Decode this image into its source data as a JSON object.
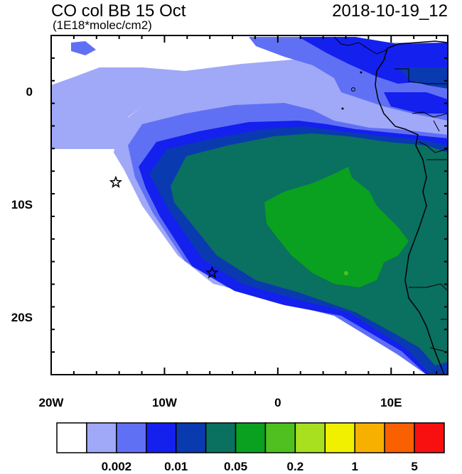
{
  "map": {
    "title": "CO col BB 15 Oct",
    "units": "(1E18*molec/cm2)",
    "date": "2018-10-19_12",
    "x_ticks": [
      {
        "label": "20W",
        "lon": -20
      },
      {
        "label": "10W",
        "lon": -10
      },
      {
        "label": "0",
        "lon": 0
      },
      {
        "label": "10E",
        "lon": 10
      }
    ],
    "y_ticks": [
      {
        "label": "0",
        "lat": 0
      },
      {
        "label": "10S",
        "lat": -10
      },
      {
        "label": "20S",
        "lat": -20
      }
    ],
    "lon_range": [
      -20,
      15
    ],
    "lat_range": [
      -25,
      5
    ],
    "markers": [
      {
        "name": "star-marker",
        "lon": -14.3,
        "lat": -8
      },
      {
        "name": "star-marker",
        "lon": -5.8,
        "lat": -16
      }
    ]
  },
  "colorbar": {
    "colors": [
      "#ffffff",
      "#a0a8f8",
      "#6070f5",
      "#1420ee",
      "#0a3ab0",
      "#0a7060",
      "#0aa020",
      "#50c020",
      "#a8e020",
      "#f0f000",
      "#f8b000",
      "#f86000",
      "#f81010"
    ],
    "labels": [
      {
        "text": "0.002",
        "after_box": 2
      },
      {
        "text": "0.01",
        "after_box": 4
      },
      {
        "text": "0.05",
        "after_box": 6
      },
      {
        "text": "0.2",
        "after_box": 8
      },
      {
        "text": "1",
        "after_box": 10
      },
      {
        "text": "5",
        "after_box": 12
      }
    ]
  }
}
